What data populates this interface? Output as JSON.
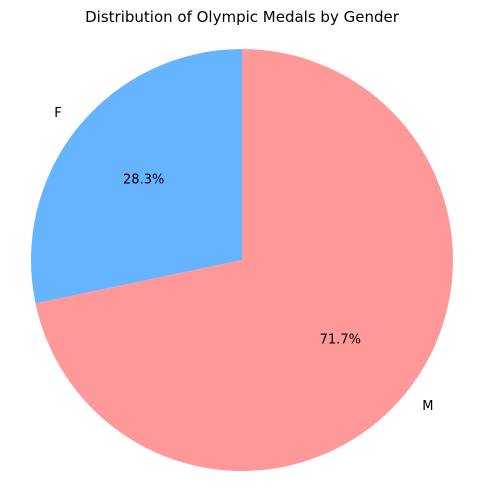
{
  "chart_data": {
    "type": "pie",
    "title": "Distribution of Olympic Medals by Gender",
    "categories": [
      "F",
      "M"
    ],
    "values": [
      28.3,
      71.7
    ],
    "value_labels": [
      "28.3%",
      "71.7%"
    ],
    "colors": [
      "#66b3ff",
      "#ff9999"
    ],
    "start_angle": 90,
    "direction": "counterclockwise",
    "legend": "none"
  }
}
